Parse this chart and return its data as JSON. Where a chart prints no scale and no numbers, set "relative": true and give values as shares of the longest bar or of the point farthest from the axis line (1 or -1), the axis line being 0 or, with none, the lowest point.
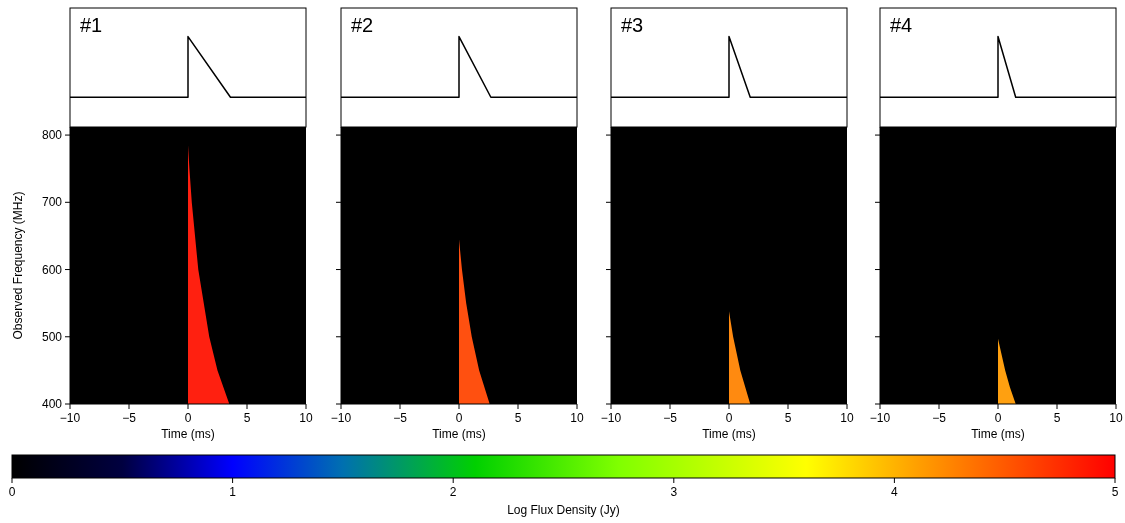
{
  "chart_data": [
    {
      "type": "line",
      "title": "#1",
      "relative": true,
      "x": [
        -10,
        0,
        0,
        3.6,
        10
      ],
      "values": [
        0,
        0,
        1,
        0,
        0
      ],
      "color": "#000000",
      "xlim": [
        -10,
        10
      ],
      "tick_labels": false
    },
    {
      "type": "line",
      "title": "#2",
      "relative": true,
      "x": [
        -10,
        0,
        0,
        2.7,
        10
      ],
      "values": [
        0,
        0,
        1,
        0,
        0
      ],
      "color": "#000000",
      "xlim": [
        -10,
        10
      ],
      "tick_labels": false
    },
    {
      "type": "line",
      "title": "#3",
      "relative": true,
      "x": [
        -10,
        0,
        0,
        1.8,
        10
      ],
      "values": [
        0,
        0,
        1,
        0,
        0
      ],
      "color": "#000000",
      "xlim": [
        -10,
        10
      ],
      "tick_labels": false
    },
    {
      "type": "line",
      "title": "#4",
      "relative": true,
      "x": [
        -10,
        0,
        0,
        1.5,
        10
      ],
      "values": [
        0,
        0,
        1,
        0,
        0
      ],
      "color": "#000000",
      "xlim": [
        -10,
        10
      ],
      "tick_labels": false
    },
    {
      "type": "area",
      "xlabel": "Time (ms)",
      "ylabel": "Observed Frequency (MHz)",
      "xlim": [
        -10,
        10
      ],
      "ylim": [
        400,
        812
      ],
      "xticks": [
        -10,
        -5,
        0,
        5,
        10
      ],
      "yticks": [
        400,
        500,
        600,
        700,
        800
      ],
      "clabel": "Log Flux Density (Jy)",
      "clim": [
        0,
        5
      ],
      "cticks": [
        0,
        1,
        2,
        3,
        4,
        5
      ],
      "series": [
        {
          "color": "#ff2010",
          "x": [
            0,
            0.12,
            0.32,
            0.87,
            1.8,
            2.5,
            3.5
          ],
          "values": [
            785,
            750,
            700,
            600,
            500,
            450,
            400
          ]
        }
      ]
    },
    {
      "type": "area",
      "xlabel": "Time (ms)",
      "xlim": [
        -10,
        10
      ],
      "ylim": [
        400,
        812
      ],
      "xticks": [
        -10,
        -5,
        0,
        5,
        10
      ],
      "yticks": [
        400,
        500,
        600,
        700,
        800
      ],
      "tick_labels": "x",
      "series": [
        {
          "color": "#ff5010",
          "x": [
            0,
            0.25,
            0.61,
            1.08,
            1.71,
            2.6
          ],
          "values": [
            645,
            600,
            550,
            500,
            450,
            400
          ]
        }
      ]
    },
    {
      "type": "area",
      "xlabel": "Time (ms)",
      "xlim": [
        -10,
        10
      ],
      "ylim": [
        400,
        812
      ],
      "xticks": [
        -10,
        -5,
        0,
        5,
        10
      ],
      "yticks": [
        400,
        500,
        600,
        700,
        800
      ],
      "tick_labels": "x",
      "series": [
        {
          "color": "#ff8a10",
          "x": [
            0,
            0.35,
            0.96,
            1.8
          ],
          "values": [
            538,
            500,
            450,
            400
          ]
        }
      ]
    },
    {
      "type": "area",
      "xlabel": "Time (ms)",
      "xlim": [
        -10,
        10
      ],
      "ylim": [
        400,
        812
      ],
      "xticks": [
        -10,
        -5,
        0,
        5,
        10
      ],
      "yticks": [
        400,
        500,
        600,
        700,
        800
      ],
      "tick_labels": "x",
      "series": [
        {
          "color": "#ffa010",
          "x": [
            0,
            0.61,
            1.01,
            1.5
          ],
          "values": [
            497,
            450,
            425,
            400
          ]
        }
      ]
    }
  ]
}
